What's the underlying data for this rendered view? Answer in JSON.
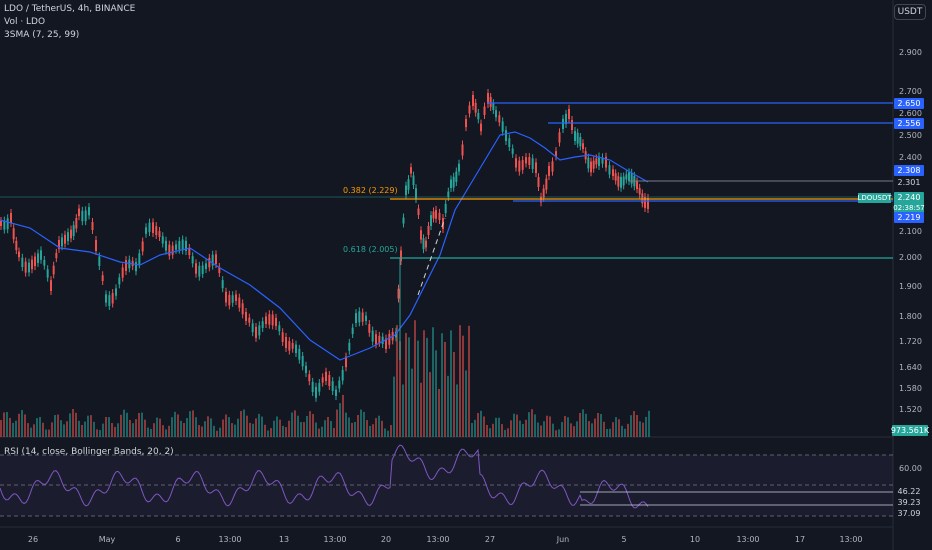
{
  "legend": {
    "symbol": "LDO / TetherUS, 4h, BINANCE",
    "vol": "Vol · LDO",
    "sma": "3SMA (7, 25, 99)",
    "rsi": "RSI (14, close, Bollinger Bands, 20, 2)"
  },
  "currency_button": "USDT",
  "price_axis": [
    "2.900",
    "2.700",
    "2.600",
    "2.500",
    "2.400",
    "2.100",
    "2.000",
    "1.900",
    "1.800",
    "1.720",
    "1.640",
    "1.580",
    "1.520"
  ],
  "rsi_axis": [
    "60.00"
  ],
  "time_axis": [
    "26",
    "May",
    "6",
    "13:00",
    "13",
    "13:00",
    "20",
    "13:00",
    "27",
    "Jun",
    "5",
    "10",
    "13:00",
    "17",
    "13:00"
  ],
  "badges": {
    "p2650": "2.650",
    "p2556": "2.556",
    "p2308": "2.308",
    "p2301": "2.301",
    "last_price": "2.240",
    "countdown": "02:38:57",
    "p2219": "2.219",
    "volume": "973.561K",
    "rsi_4622": "46.22",
    "rsi_3923": "39.23",
    "rsi_3709": "37.09"
  },
  "symbol_tag": "LDOUSDT",
  "fib_levels": [
    {
      "label": "0.382 (2.229)",
      "price": 2.229
    },
    {
      "label": "0.618 (2.005)",
      "price": 2.005
    }
  ],
  "colors": {
    "background": "#131722",
    "up": "#26a69a",
    "down": "#ef5350",
    "sma": "#2962ff",
    "rsi": "#7e57c2",
    "fib_orange": "#ff9800",
    "fib_teal": "#26a69a"
  }
}
